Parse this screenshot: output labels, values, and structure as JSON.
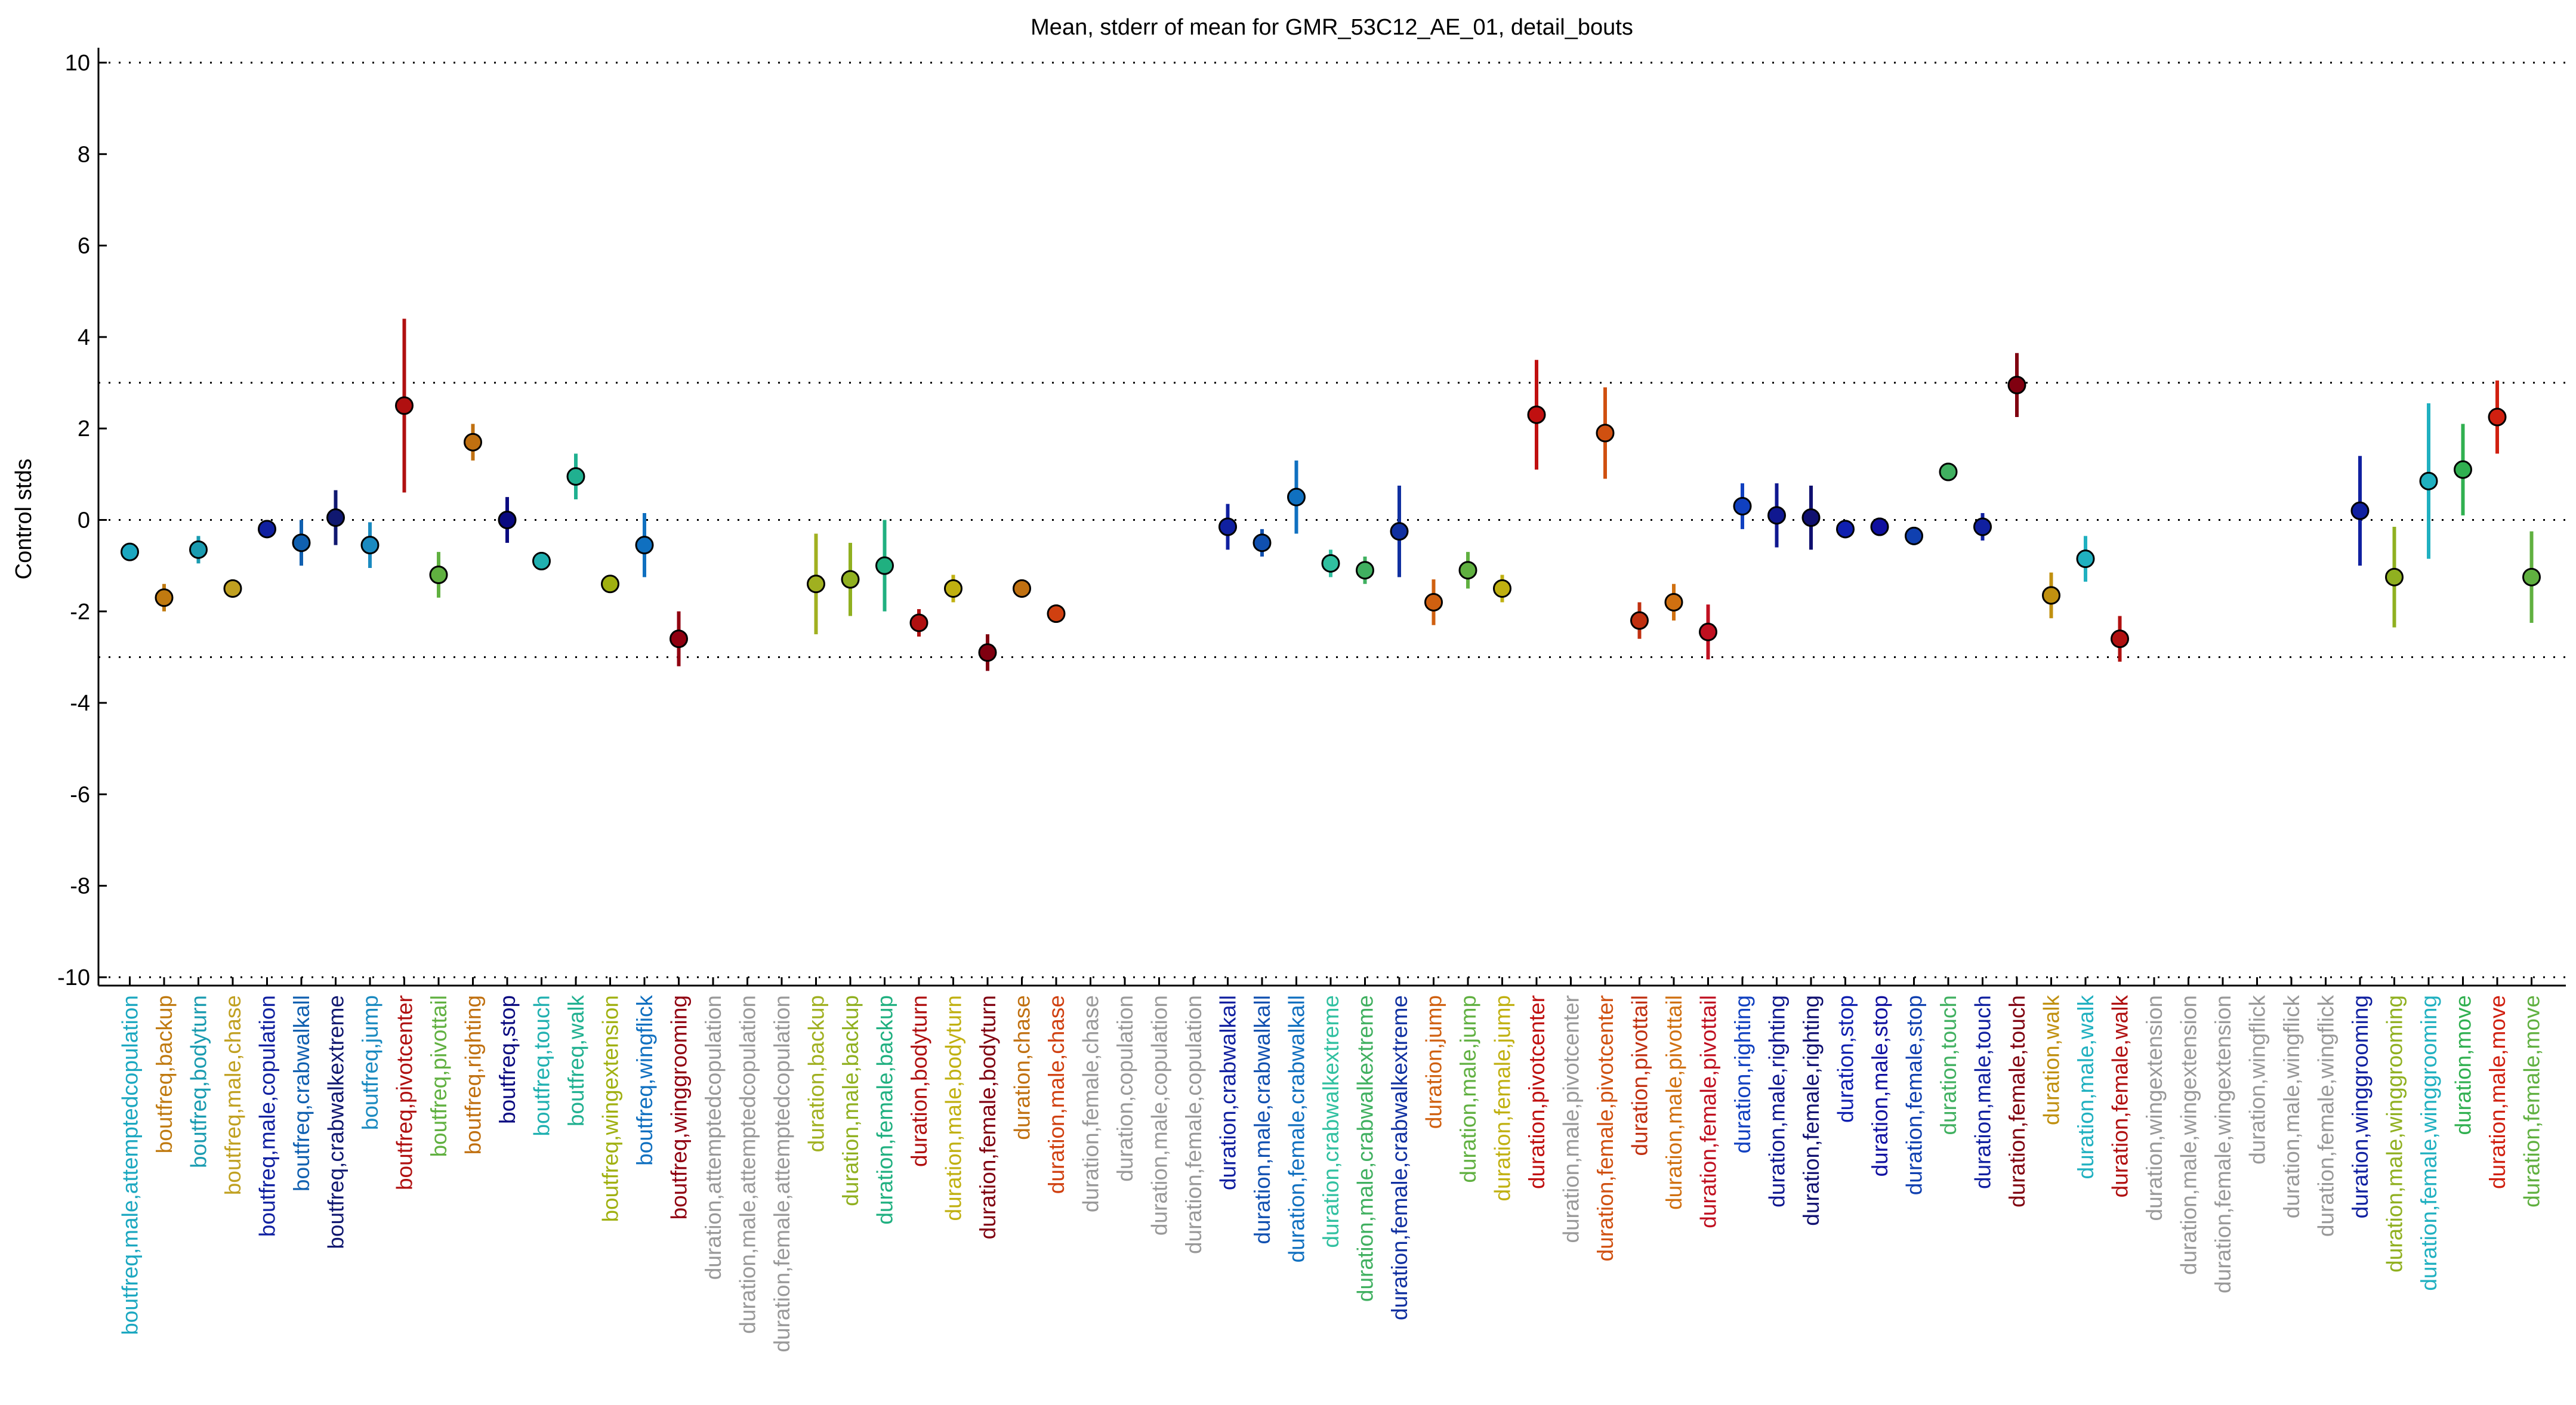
{
  "chart_data": {
    "type": "errorbar",
    "title": "Mean, stderr of mean for GMR_53C12_AE_01, detail_bouts",
    "y_label": "Control stds",
    "ylim": [
      -10,
      10
    ],
    "yticks": [
      -10,
      -8,
      -6,
      -4,
      -2,
      0,
      2,
      4,
      6,
      8,
      10
    ],
    "reference_lines": [
      -10,
      -3,
      0,
      3,
      10
    ],
    "categories": [
      "boutfreq,male,attemptedcopulation",
      "boutfreq,backup",
      "boutfreq,bodyturn",
      "boutfreq,male,chase",
      "boutfreq,male,copulation",
      "boutfreq,crabwalkall",
      "boutfreq,crabwalkextreme",
      "boutfreq,jump",
      "boutfreq,pivotcenter",
      "boutfreq,pivottail",
      "boutfreq,righting",
      "boutfreq,stop",
      "boutfreq,touch",
      "boutfreq,walk",
      "boutfreq,wingextension",
      "boutfreq,wingflick",
      "boutfreq,winggrooming",
      "duration,attemptedcopulation",
      "duration,male,attemptedcopulation",
      "duration,female,attemptedcopulation",
      "duration,backup",
      "duration,male,backup",
      "duration,female,backup",
      "duration,bodyturn",
      "duration,male,bodyturn",
      "duration,female,bodyturn",
      "duration,chase",
      "duration,male,chase",
      "duration,female,chase",
      "duration,copulation",
      "duration,male,copulation",
      "duration,female,copulation",
      "duration,crabwalkall",
      "duration,male,crabwalkall",
      "duration,female,crabwalkall",
      "duration,crabwalkextreme",
      "duration,male,crabwalkextreme",
      "duration,female,crabwalkextreme",
      "duration,jump",
      "duration,male,jump",
      "duration,female,jump",
      "duration,pivotcenter",
      "duration,male,pivotcenter",
      "duration,female,pivotcenter",
      "duration,pivottail",
      "duration,male,pivottail",
      "duration,female,pivottail",
      "duration,righting",
      "duration,male,righting",
      "duration,female,righting",
      "duration,stop",
      "duration,male,stop",
      "duration,female,stop",
      "duration,touch",
      "duration,male,touch",
      "duration,female,touch",
      "duration,walk",
      "duration,male,walk",
      "duration,female,walk",
      "duration,wingextension",
      "duration,male,wingextension",
      "duration,female,wingextension",
      "duration,wingflick",
      "duration,male,wingflick",
      "duration,female,wingflick",
      "duration,winggrooming",
      "duration,male,winggrooming",
      "duration,female,winggrooming",
      "duration,move",
      "duration,male,move",
      "duration,female,move"
    ],
    "colors": [
      "#1ba7c0",
      "#c07a10",
      "#1a9bb0",
      "#c0a020",
      "#1020a0",
      "#1060b0",
      "#101870",
      "#1a8ac0",
      "#b01010",
      "#60b040",
      "#c07010",
      "#0a0a80",
      "#20b0b0",
      "#20b090",
      "#a0b010",
      "#1070c0",
      "#900010",
      "#999999",
      "#999999",
      "#999999",
      "#a0b020",
      "#90b020",
      "#20b080",
      "#b01010",
      "#c0b010",
      "#800010",
      "#c07010",
      "#d04010",
      "#999999",
      "#999999",
      "#999999",
      "#999999",
      "#1020a0",
      "#1050b0",
      "#1070c0",
      "#30c0a0",
      "#40b060",
      "#1030a0",
      "#d06010",
      "#60b040",
      "#c0b010",
      "#c01010",
      "#999999",
      "#d05010",
      "#c03010",
      "#d07010",
      "#c01020",
      "#1040c0",
      "#101890",
      "#101070",
      "#1020b0",
      "#1010a0",
      "#1040b0",
      "#40b060",
      "#1020a0",
      "#800010",
      "#c09010",
      "#20b0c0",
      "#b01010",
      "#999999",
      "#999999",
      "#999999",
      "#999999",
      "#999999",
      "#999999",
      "#1020a0",
      "#90b020",
      "#20b0c0",
      "#30b050",
      "#d02010",
      "#60b040"
    ],
    "values": [
      -0.7,
      -1.7,
      -0.65,
      -1.5,
      -0.2,
      -0.5,
      0.05,
      -0.55,
      2.5,
      -1.2,
      1.7,
      0.0,
      -0.9,
      0.95,
      -1.4,
      -0.55,
      -2.6,
      null,
      null,
      null,
      -1.4,
      -1.3,
      -1.0,
      -2.25,
      -1.5,
      -2.9,
      -1.5,
      -2.05,
      null,
      null,
      null,
      null,
      -0.15,
      -0.5,
      0.5,
      -0.95,
      -1.1,
      -0.25,
      -1.8,
      -1.1,
      -1.5,
      2.3,
      null,
      1.9,
      -2.2,
      -1.8,
      -2.45,
      0.3,
      0.1,
      0.05,
      -0.2,
      -0.15,
      -0.35,
      1.05,
      -0.15,
      2.95,
      -1.65,
      -0.85,
      -2.6,
      null,
      null,
      null,
      null,
      null,
      null,
      0.2,
      -1.25,
      0.85,
      1.1,
      2.25,
      -1.25
    ],
    "errors": [
      0.2,
      0.3,
      0.3,
      0.2,
      0.1,
      0.5,
      0.6,
      0.5,
      1.9,
      0.5,
      0.4,
      0.5,
      0.2,
      0.5,
      0.1,
      0.7,
      0.6,
      null,
      null,
      null,
      1.1,
      0.8,
      1.0,
      0.3,
      0.3,
      0.4,
      0.2,
      0.2,
      null,
      null,
      null,
      null,
      0.5,
      0.3,
      0.8,
      0.3,
      0.3,
      1.0,
      0.5,
      0.4,
      0.3,
      1.2,
      null,
      1.0,
      0.4,
      0.4,
      0.6,
      0.5,
      0.7,
      0.7,
      0.2,
      0.2,
      0.2,
      0.2,
      0.3,
      0.7,
      0.5,
      0.5,
      0.5,
      null,
      null,
      null,
      null,
      null,
      null,
      1.2,
      1.1,
      1.7,
      1.0,
      0.8,
      1.0
    ]
  }
}
